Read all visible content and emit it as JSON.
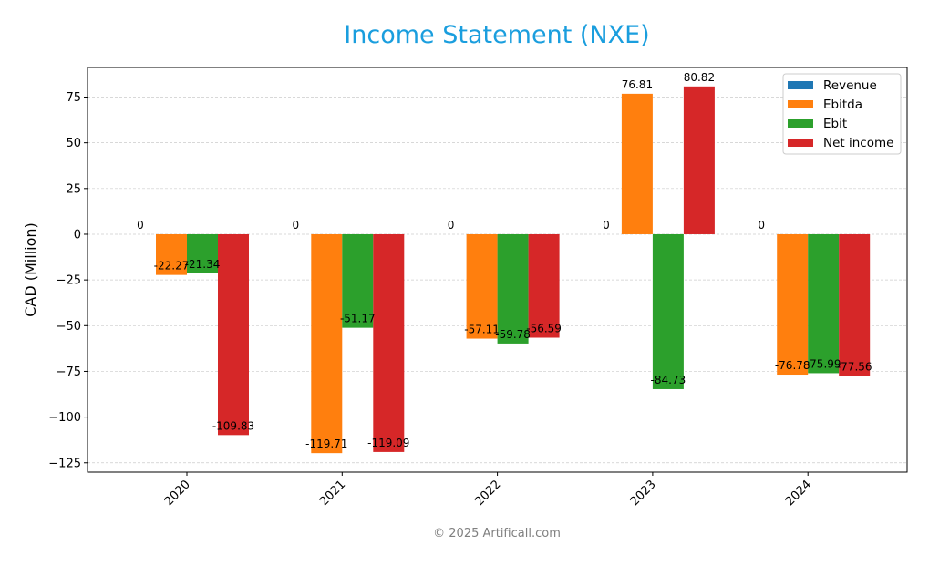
{
  "chart_data": {
    "type": "bar",
    "title": "Income Statement (NXE)",
    "xlabel": "",
    "ylabel": "CAD (Million)",
    "categories": [
      "2020",
      "2021",
      "2022",
      "2023",
      "2024"
    ],
    "series": [
      {
        "name": "Revenue",
        "color": "#1f77b4",
        "values": [
          0,
          0,
          0,
          0,
          0
        ],
        "labels": [
          "0",
          "0",
          "0",
          "0",
          "0"
        ]
      },
      {
        "name": "Ebitda",
        "color": "#ff7f0e",
        "values": [
          -22.27,
          -119.71,
          -57.11,
          76.81,
          -76.78
        ],
        "labels": [
          "-22.27",
          "-119.71",
          "-57.11",
          "76.81",
          "-76.78"
        ]
      },
      {
        "name": "Ebit",
        "color": "#2ca02c",
        "values": [
          -21.34,
          -51.17,
          -59.78,
          -84.73,
          -75.99
        ],
        "labels": [
          "-21.34",
          "-51.17",
          "-59.78",
          "-84.73",
          "-75.99"
        ]
      },
      {
        "name": "Net income",
        "color": "#d62728",
        "values": [
          -109.83,
          -119.09,
          -56.59,
          80.82,
          -77.56
        ],
        "labels": [
          "-109.83",
          "-119.09",
          "-56.59",
          "80.82",
          "-77.56"
        ]
      }
    ],
    "ylim": [
      -130.1,
      91.2
    ],
    "yticks": [
      -125,
      -100,
      -75,
      -50,
      -25,
      0,
      25,
      50,
      75
    ],
    "ytick_labels": [
      "−125",
      "−100",
      "−75",
      "−50",
      "−25",
      "0",
      "25",
      "50",
      "75"
    ],
    "grid": true,
    "legend": "top-right"
  },
  "title_color": "#1a9ede",
  "watermark": "© 2025 Artificall.com"
}
